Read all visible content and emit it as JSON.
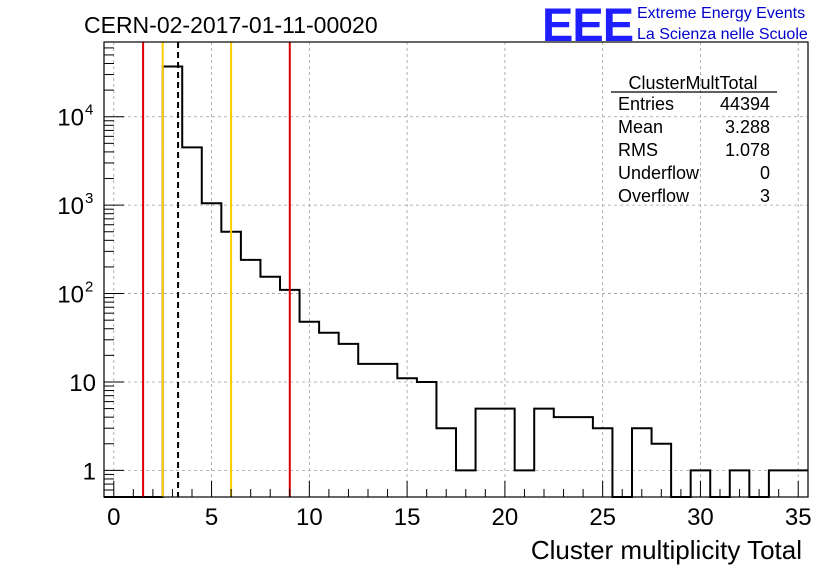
{
  "header": {
    "run_title": "CERN-02-2017-01-11-00020",
    "logo_mark": "EEE",
    "logo_line_1": "Extreme Energy Events",
    "logo_line_2": "La Scienza nelle Scuole"
  },
  "colors": {
    "histogram": "#000000",
    "red_line": "#dd0000",
    "yellow_line": "#ffcc00",
    "grid": "#a0a0a0",
    "logo": "#1e1eff"
  },
  "stats_box": {
    "title": "ClusterMultTotal",
    "rows": [
      {
        "label": "Entries",
        "value": "44394"
      },
      {
        "label": "Mean",
        "value": "3.288"
      },
      {
        "label": "RMS",
        "value": "1.078"
      },
      {
        "label": "Underflow",
        "value": "0"
      },
      {
        "label": "Overflow",
        "value": "3"
      }
    ]
  },
  "chart_data": {
    "type": "histogram",
    "title": "",
    "xlabel": "Cluster multiplicity Total",
    "ylabel": "",
    "x_scale": "linear",
    "y_scale": "log",
    "xlim": [
      -0.5,
      35.5
    ],
    "ylim": [
      0.5,
      70000
    ],
    "grid": true,
    "x_ticks": [
      0,
      5,
      10,
      15,
      20,
      25,
      30,
      35
    ],
    "y_ticks": [
      {
        "value": 1,
        "label": "1"
      },
      {
        "value": 10,
        "label": "10"
      },
      {
        "value": 100,
        "label": "10^2"
      },
      {
        "value": 1000,
        "label": "10^3"
      },
      {
        "value": 10000,
        "label": "10^4"
      }
    ],
    "bin_width": 1,
    "bin_centers": [
      0,
      1,
      2,
      3,
      4,
      5,
      6,
      7,
      8,
      9,
      10,
      11,
      12,
      13,
      14,
      15,
      16,
      17,
      18,
      19,
      20,
      21,
      22,
      23,
      24,
      25,
      26,
      27,
      28,
      29,
      30,
      31,
      32,
      33,
      34,
      35
    ],
    "counts": [
      0,
      0,
      0,
      37000,
      4500,
      1050,
      500,
      240,
      155,
      110,
      48,
      36,
      27,
      16,
      16,
      11,
      10,
      3,
      1,
      5,
      5,
      1,
      5,
      4,
      4,
      3,
      0,
      3,
      2,
      0,
      1,
      0,
      1,
      0,
      1,
      1
    ],
    "vertical_lines": [
      {
        "x": 1.5,
        "color": "red",
        "style": "solid"
      },
      {
        "x": 2.5,
        "color": "yellow",
        "style": "solid"
      },
      {
        "x": 3.288,
        "color": "black",
        "style": "dashed"
      },
      {
        "x": 6.0,
        "color": "yellow",
        "style": "solid"
      },
      {
        "x": 9.0,
        "color": "red",
        "style": "solid"
      }
    ]
  }
}
